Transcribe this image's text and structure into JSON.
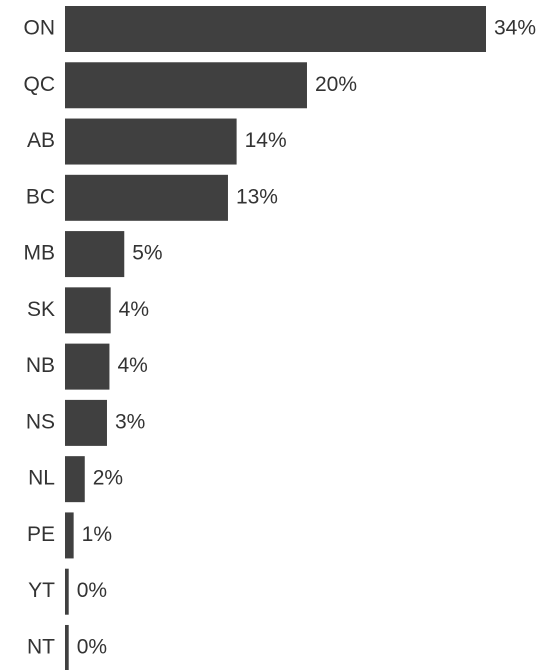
{
  "chart_data": {
    "type": "bar",
    "orientation": "horizontal",
    "categories": [
      "ON",
      "QC",
      "AB",
      "BC",
      "MB",
      "SK",
      "NB",
      "NS",
      "NL",
      "PE",
      "YT",
      "NT"
    ],
    "values": [
      34.1,
      19.6,
      13.9,
      13.2,
      4.8,
      3.7,
      3.6,
      3.4,
      1.6,
      0.7,
      0.3,
      0.3
    ],
    "value_labels": [
      "34%",
      "20%",
      "14%",
      "13%",
      "5%",
      "4%",
      "4%",
      "3%",
      "2%",
      "1%",
      "0%",
      "0%"
    ],
    "color": "#404040"
  }
}
